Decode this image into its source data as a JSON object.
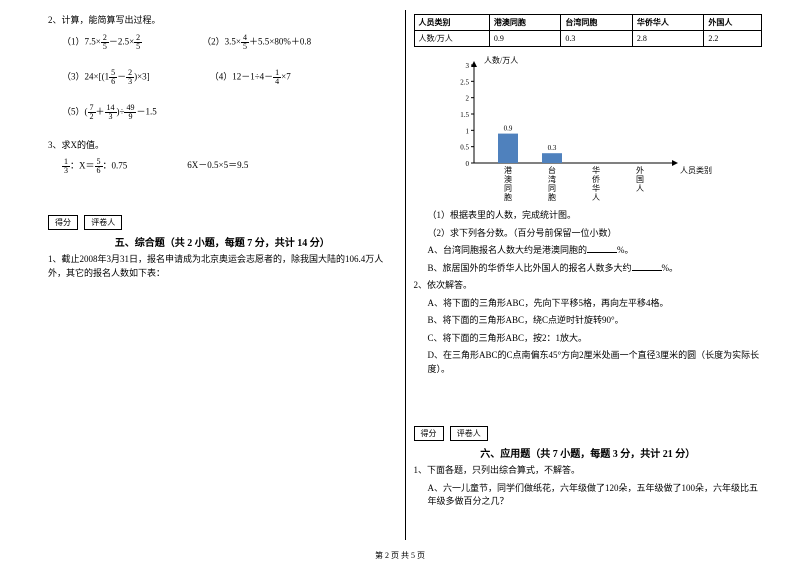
{
  "left": {
    "q2_title": "2、计算，能简算写出过程。",
    "eq1_label": "（1）7.5×",
    "eq1_frac1": {
      "n": "2",
      "d": "5"
    },
    "eq1_mid": "－2.5×",
    "eq1_frac2": {
      "n": "2",
      "d": "5"
    },
    "eq2_label": "（2）",
    "eq2_pre": "3.5×",
    "eq2_frac": {
      "n": "4",
      "d": "5"
    },
    "eq2_post": "＋5.5×80%＋0.8",
    "eq3_label": "（3）",
    "eq3_pre": "24×",
    "eq3_bracket_l": "[(",
    "eq3_frac1": {
      "n": "5",
      "d": "6"
    },
    "eq3_mid": "－",
    "eq3_frac2": {
      "n": "2",
      "d": "3"
    },
    "eq3_bracket_r": ")×3]",
    "eq4_label": "（4）12－1÷4－",
    "eq4_frac": {
      "n": "1",
      "d": "4"
    },
    "eq4_post": "×7",
    "eq5_label": "（5）",
    "eq5_l": "(",
    "eq5_frac1": {
      "n": "7",
      "d": "2"
    },
    "eq5_plus": "＋",
    "eq5_frac2": {
      "n": "14",
      "d": "3"
    },
    "eq5_r": ")÷",
    "eq5_frac3": {
      "n": "49",
      "d": "9"
    },
    "eq5_post": "－1.5",
    "q3_title": "3、求X的值。",
    "eq6_frac1": {
      "n": "1",
      "d": "3"
    },
    "eq6_mid": "：X＝",
    "eq6_frac2": {
      "n": "5",
      "d": "6"
    },
    "eq6_post": "：0.75",
    "eq7": "6X－0.5×5＝9.5",
    "score_label1": "得分",
    "score_label2": "评卷人",
    "section5": "五、综合题（共 2 小题，每题 7 分，共计 14 分）",
    "p1": "1、截止2008年3月31日，报名申请成为北京奥运会志愿者的，除我国大陆的106.4万人外，其它的报名人数如下表："
  },
  "right": {
    "table": {
      "headers": [
        "人员类别",
        "港澳同胞",
        "台湾同胞",
        "华侨华人",
        "外国人"
      ],
      "row_label": "人数/万人",
      "values": [
        "0.9",
        "0.3",
        "2.8",
        "2.2"
      ]
    },
    "chart": {
      "ylabel": "人数/万人",
      "xlabel": "人员类别",
      "yticks": [
        "0",
        "0.5",
        "1",
        "1.5",
        "2",
        "2.5",
        "3"
      ],
      "categories": [
        "港澳同胞",
        "台湾同胞",
        "华侨华人",
        "外国人"
      ],
      "values": [
        0.9,
        0.3,
        0,
        0
      ],
      "value_labels": [
        "0.9",
        "0.3",
        "",
        ""
      ],
      "bar_color": "#4f81bd",
      "axis_color": "#000000",
      "ymax": 3
    },
    "q1": "（1）根据表里的人数，完成统计图。",
    "q2": "（2）求下列各分数。（百分号前保留一位小数）",
    "q2a": "A、台湾同胞报名人数大约是港澳同胞的",
    "q2a_suffix": "%。",
    "q2b": "B、旅居国外的华侨华人比外国人的报名人数多大约",
    "q2b_suffix": "%。",
    "p2_title": "2、依次解答。",
    "p2a": "A、将下面的三角形ABC，先向下平移5格，再向左平移4格。",
    "p2b": "B、将下面的三角形ABC，绕C点逆时针旋转90°。",
    "p2c": "C、将下面的三角形ABC，按2：1放大。",
    "p2d": "D、在三角形ABC的C点南偏东45°方向2厘米处画一个直径3厘米的圆（长度为实际长度）。",
    "score_label1": "得分",
    "score_label2": "评卷人",
    "section6": "六、应用题（共 7 小题，每题 3 分，共计 21 分）",
    "p3": "1、下面各题，只列出综合算式，不解答。",
    "p3a": "A、六一儿童节，同学们做纸花，六年级做了120朵，五年级做了100朵，六年级比五年级多做百分之几？"
  },
  "footer": "第 2 页 共 5 页"
}
